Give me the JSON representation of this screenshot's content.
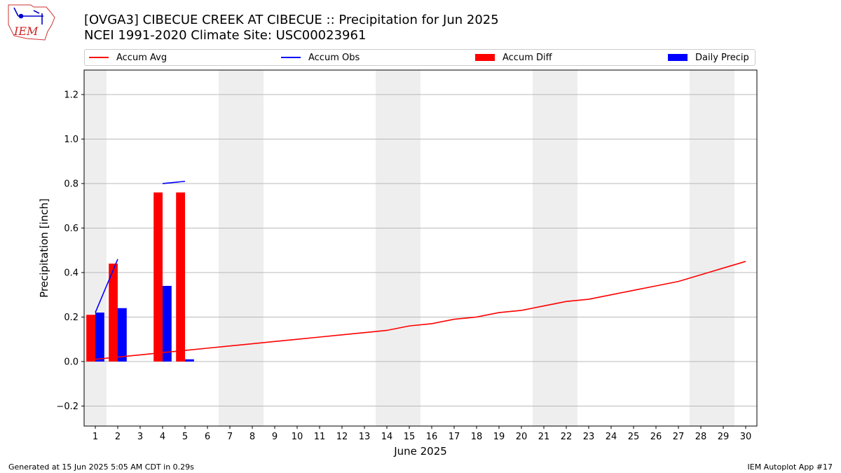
{
  "header": {
    "title_line1": "[OVGA3] CIBECUE CREEK  AT CIBECUE :: Precipitation for Jun 2025",
    "title_line2": "NCEI 1991-2020 Climate Site: USC00023961",
    "logo_text": "IEM"
  },
  "legend": {
    "accum_avg": "Accum Avg",
    "accum_obs": "Accum Obs",
    "accum_diff": "Accum Diff",
    "daily_precip": "Daily Precip"
  },
  "footer": {
    "generated": "Generated at 15 Jun 2025 5:05 AM CDT in 0.29s",
    "app": "IEM Autoplot App #17"
  },
  "colors": {
    "accum_avg": "#ff0000",
    "accum_obs": "#0000ff",
    "accum_diff": "#ff0000",
    "daily_precip": "#0000ff",
    "weekend_shade": "#eeeeee",
    "grid": "#b0b0b0"
  },
  "chart_data": {
    "type": "bar",
    "xlabel": "June 2025",
    "ylabel": "Precipitation [inch]",
    "xlim": [
      0.5,
      30.5
    ],
    "ylim": [
      -0.29,
      1.31
    ],
    "yticks": [
      -0.2,
      0.0,
      0.2,
      0.4,
      0.6,
      0.8,
      1.0,
      1.2
    ],
    "ytick_labels": [
      "−0.2",
      "0.0",
      "0.2",
      "0.4",
      "0.6",
      "0.8",
      "1.0",
      "1.2"
    ],
    "grid": "horizontal",
    "legend_position": "top",
    "shaded_days": [
      [
        0.5,
        1.5
      ],
      [
        6.5,
        8.5
      ],
      [
        13.5,
        15.5
      ],
      [
        20.5,
        22.5
      ],
      [
        27.5,
        29.5
      ]
    ],
    "days": [
      1,
      2,
      3,
      4,
      5,
      6,
      7,
      8,
      9,
      10,
      11,
      12,
      13,
      14,
      15,
      16,
      17,
      18,
      19,
      20,
      21,
      22,
      23,
      24,
      25,
      26,
      27,
      28,
      29,
      30
    ],
    "accum_avg": [
      0.01,
      0.02,
      0.03,
      0.04,
      0.05,
      0.06,
      0.07,
      0.08,
      0.09,
      0.1,
      0.11,
      0.12,
      0.13,
      0.14,
      0.16,
      0.17,
      0.19,
      0.2,
      0.22,
      0.23,
      0.25,
      0.27,
      0.28,
      0.3,
      0.32,
      0.34,
      0.36,
      0.39,
      0.42,
      0.45
    ],
    "accum_obs_segments": [
      [
        [
          1,
          0.22
        ],
        [
          2,
          0.46
        ]
      ],
      [
        [
          4,
          0.8
        ],
        [
          5,
          0.81
        ]
      ]
    ],
    "accum_diff": [
      {
        "day": 1,
        "value": 0.21
      },
      {
        "day": 2,
        "value": 0.44
      },
      {
        "day": 4,
        "value": 0.76
      },
      {
        "day": 5,
        "value": 0.76
      }
    ],
    "daily_precip": [
      {
        "day": 1,
        "value": 0.22
      },
      {
        "day": 2,
        "value": 0.24
      },
      {
        "day": 4,
        "value": 0.34
      },
      {
        "day": 5,
        "value": 0.01
      }
    ]
  }
}
